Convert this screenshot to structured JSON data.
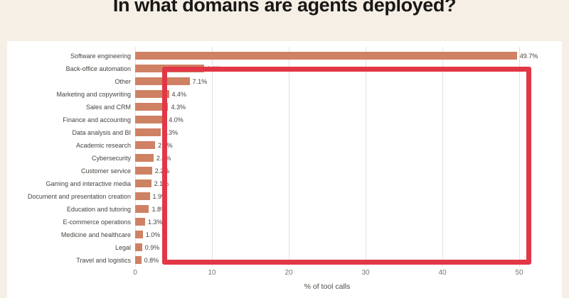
{
  "page": {
    "background_color": "#f5efe6",
    "panel_color": "#ffffff"
  },
  "chart_data": {
    "type": "bar",
    "orientation": "horizontal",
    "title": "In what domains are agents deployed?",
    "xlabel": "% of tool calls",
    "xlim": [
      0,
      50
    ],
    "xticks": [
      0,
      10,
      20,
      30,
      40,
      50
    ],
    "grid": true,
    "bar_color": "#CF8164",
    "categories": [
      "Software engineering",
      "Back-office automation",
      "Other",
      "Marketing and copywriting",
      "Sales and CRM",
      "Finance and accounting",
      "Data analysis and BI",
      "Academic research",
      "Cybersecurity",
      "Customer service",
      "Gaming and interactive media",
      "Document and presentation creation",
      "Education and tutoring",
      "E-commerce operations",
      "Medicine and healthcare",
      "Legal",
      "Travel and logistics"
    ],
    "values": [
      49.7,
      9.0,
      7.1,
      4.4,
      4.3,
      4.0,
      3.3,
      2.6,
      2.4,
      2.2,
      2.1,
      1.9,
      1.8,
      1.3,
      1.0,
      0.9,
      0.8
    ],
    "value_labels": [
      "49.7%",
      "9.0%",
      "7.1%",
      "4.4%",
      "4.3%",
      "4.0%",
      "3.3%",
      "2.6%",
      "2.4%",
      "2.2%",
      "2.1%",
      "1.9%",
      "1.8%",
      "1.3%",
      "1.0%",
      "0.9%",
      "0.8%"
    ]
  },
  "annotation": {
    "type": "rectangle",
    "color": "#e23747"
  }
}
